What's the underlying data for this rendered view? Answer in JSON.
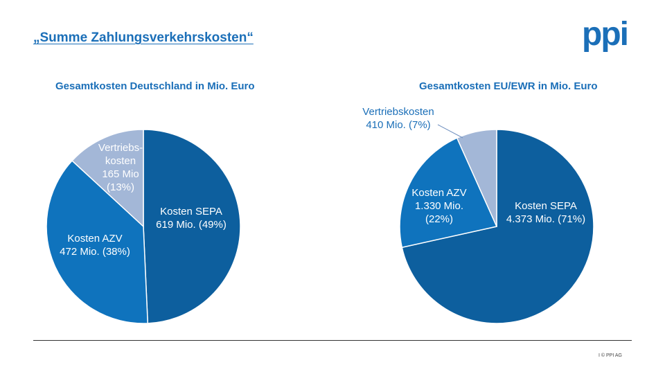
{
  "slide": {
    "title": "„Summe Zahlungsverkehrskosten“",
    "logo": "ppi",
    "footer": "I  © PPI AG"
  },
  "colors": {
    "brand": "#1b6fb8",
    "sepa": "#0d5f9e",
    "azv": "#0f73bd",
    "vertrieb": "#a3b7d7",
    "label_dark": "#1b6fb8"
  },
  "chart_data": [
    {
      "type": "pie",
      "title": "Gesamtkosten Deutschland in Mio. Euro",
      "unit": "Mio. Euro",
      "slices": [
        {
          "name": "Kosten SEPA",
          "value": 619,
          "percent": 49,
          "color_key": "sepa",
          "label_lines": [
            "Kosten SEPA",
            "619 Mio. (49%)"
          ]
        },
        {
          "name": "Kosten AZV",
          "value": 472,
          "percent": 38,
          "color_key": "azv",
          "label_lines": [
            "Kosten AZV",
            "472 Mio. (38%)"
          ]
        },
        {
          "name": "Vertriebskosten",
          "value": 165,
          "percent": 13,
          "color_key": "vertrieb",
          "label_lines": [
            "Vertriebs-",
            "kosten",
            "165 Mio",
            "(13%)"
          ]
        }
      ]
    },
    {
      "type": "pie",
      "title": "Gesamtkosten EU/EWR in Mio. Euro",
      "unit": "Mio. Euro",
      "slices": [
        {
          "name": "Kosten SEPA",
          "value": 4373,
          "percent": 71,
          "color_key": "sepa",
          "label_lines": [
            "Kosten SEPA",
            "4.373 Mio. (71%)"
          ]
        },
        {
          "name": "Kosten AZV",
          "value": 1330,
          "percent": 22,
          "color_key": "azv",
          "label_lines": [
            "Kosten AZV",
            "1.330 Mio.",
            "(22%)"
          ]
        },
        {
          "name": "Vertriebskosten",
          "value": 410,
          "percent": 7,
          "color_key": "vertrieb",
          "label_lines": [
            "Vertriebskosten",
            "410 Mio. (7%)"
          ]
        }
      ]
    }
  ]
}
